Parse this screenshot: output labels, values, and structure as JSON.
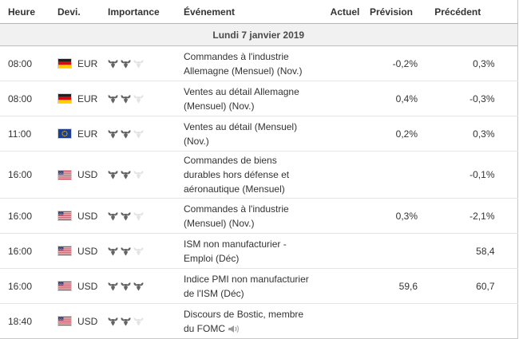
{
  "table": {
    "columns": [
      {
        "key": "time",
        "label": "Heure"
      },
      {
        "key": "currency",
        "label": "Devi."
      },
      {
        "key": "importance",
        "label": "Importance"
      },
      {
        "key": "event",
        "label": "Événement"
      },
      {
        "key": "actual",
        "label": "Actuel"
      },
      {
        "key": "forecast",
        "label": "Prévision"
      },
      {
        "key": "previous",
        "label": "Précédent"
      }
    ],
    "date_header": "Lundi 7 janvier 2019",
    "importance_max": 3,
    "rows": [
      {
        "time": "08:00",
        "currency": "EUR",
        "flag": "germany",
        "importance": 2,
        "event": "Commandes à l'industrie Allemagne (Mensuel) (Nov.)",
        "actual": "",
        "forecast": "-0,2%",
        "previous": "0,3%",
        "speech": false
      },
      {
        "time": "08:00",
        "currency": "EUR",
        "flag": "germany",
        "importance": 2,
        "event": "Ventes au détail Allemagne (Mensuel) (Nov.)",
        "actual": "",
        "forecast": "0,4%",
        "previous": "-0,3%",
        "speech": false
      },
      {
        "time": "11:00",
        "currency": "EUR",
        "flag": "eu",
        "importance": 2,
        "event": "Ventes au détail (Mensuel) (Nov.)",
        "actual": "",
        "forecast": "0,2%",
        "previous": "0,3%",
        "speech": false
      },
      {
        "time": "16:00",
        "currency": "USD",
        "flag": "us",
        "importance": 2,
        "event": "Commandes de biens durables hors défense et aéronautique (Mensuel)",
        "actual": "",
        "forecast": "",
        "previous": "-0,1%",
        "speech": false
      },
      {
        "time": "16:00",
        "currency": "USD",
        "flag": "us",
        "importance": 2,
        "event": "Commandes à l'industrie (Mensuel) (Nov.)",
        "actual": "",
        "forecast": "0,3%",
        "previous": "-2,1%",
        "speech": false
      },
      {
        "time": "16:00",
        "currency": "USD",
        "flag": "us",
        "importance": 2,
        "event": "ISM non manufacturier - Emploi (Déc)",
        "actual": "",
        "forecast": "",
        "previous": "58,4",
        "speech": false
      },
      {
        "time": "16:00",
        "currency": "USD",
        "flag": "us",
        "importance": 3,
        "event": "Indice PMI non manufacturier de l'ISM (Déc)",
        "actual": "",
        "forecast": "59,6",
        "previous": "60,7",
        "speech": false
      },
      {
        "time": "18:40",
        "currency": "USD",
        "flag": "us",
        "importance": 2,
        "event": "Discours de Bostic, membre du FOMC",
        "actual": "",
        "forecast": "",
        "previous": "",
        "speech": true
      }
    ]
  },
  "icons": {
    "importance": "bull-icon",
    "speech": "speaker-icon",
    "flags": [
      "germany-flag-icon",
      "eu-flag-icon",
      "us-flag-icon"
    ]
  },
  "colors": {
    "text": "#333333",
    "date_row_bg": "#f1f1f1",
    "date_row_border": "#bdbdbd",
    "header_border": "#b5b5b5",
    "row_border": "#e5e5e5",
    "table_right_border": "#c6c6c6",
    "bull_active": "#646464",
    "bull_inactive": "#e4e4e4",
    "speaker_gray": "#999999"
  }
}
